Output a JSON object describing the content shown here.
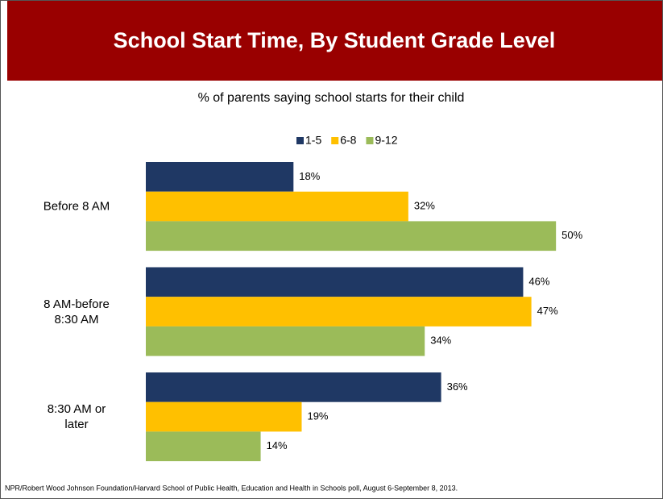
{
  "chart_data": {
    "type": "hbar",
    "title": "School Start Time, By Student Grade Level",
    "subtitle": "% of parents saying school starts for their child",
    "categories": [
      "Before 8 AM",
      "8 AM-before\n8:30 AM",
      "8:30 AM or\nlater"
    ],
    "series": [
      {
        "name": "1-5",
        "color": "#1f3864",
        "values": [
          18,
          46,
          36
        ],
        "value_labels": [
          "18%",
          "46%",
          "36%"
        ]
      },
      {
        "name": "6-8",
        "color": "#ffc000",
        "values": [
          32,
          47,
          19
        ],
        "value_labels": [
          "32%",
          "47%",
          "19%"
        ]
      },
      {
        "name": "9-12",
        "color": "#9bbb59",
        "values": [
          50,
          34,
          14
        ],
        "value_labels": [
          "50%",
          "34%",
          "14%"
        ]
      }
    ],
    "xlim": [
      0,
      60
    ],
    "legend": "top",
    "footnote": "NPR/Robert Wood Johnson Foundation/Harvard School of Public Health, Education and Health in Schools poll, August 6-September 8, 2013."
  }
}
